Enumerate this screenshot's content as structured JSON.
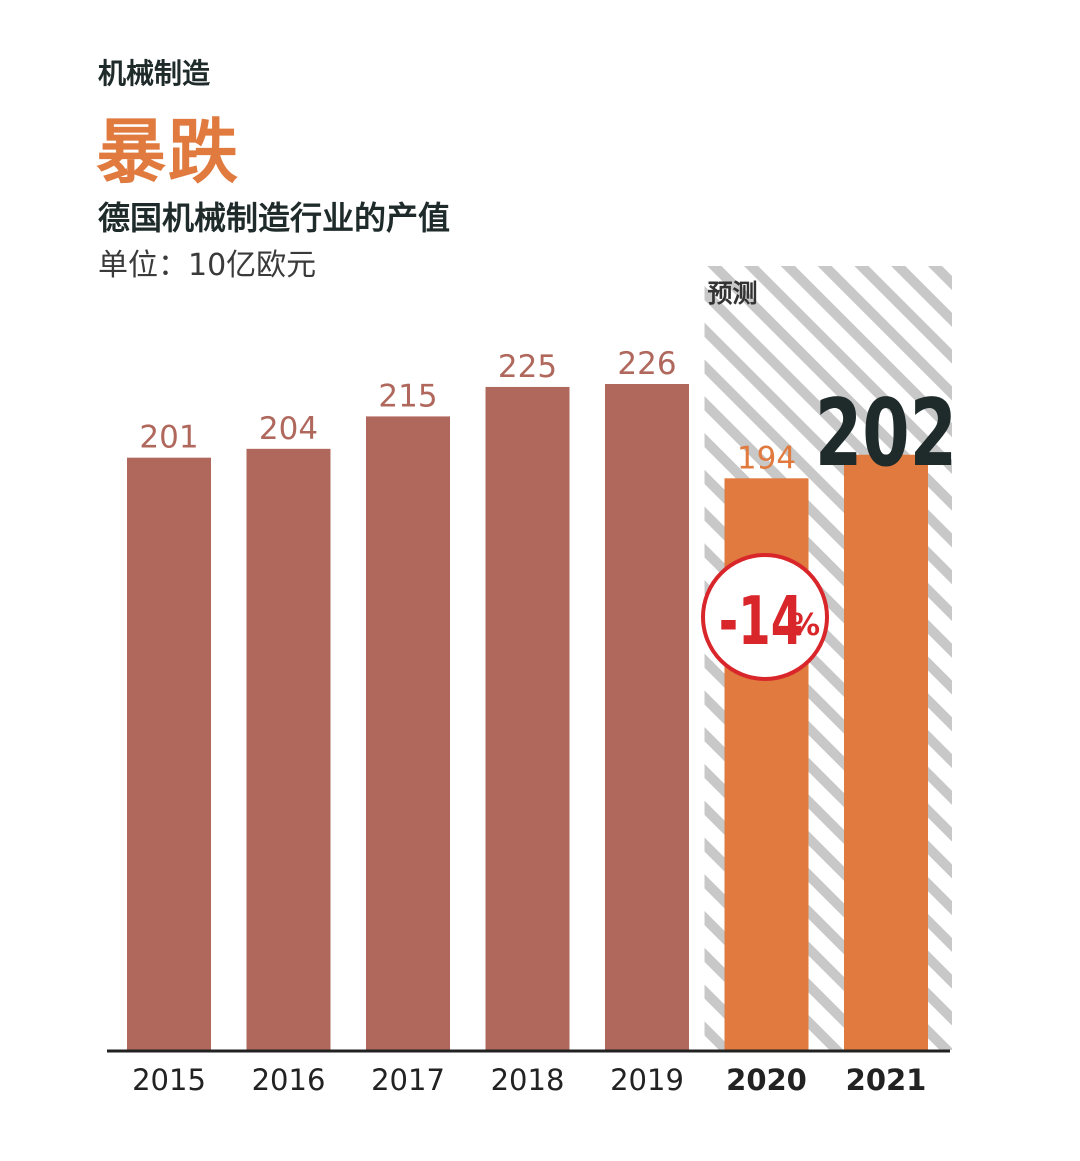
{
  "header": {
    "kicker": "机械制造",
    "headline": "暴跌",
    "title": "德国机械制造行业的产值",
    "unit": "单位：10亿欧元"
  },
  "forecast_label": "预测",
  "change_badge": {
    "value": "-14",
    "suffix": "%"
  },
  "colors": {
    "historical_bar": "#b0685d",
    "forecast_bar": "#e07a3e",
    "historical_label": "#b0685d",
    "forecast_label": "#e07a3e",
    "highlight_label": "#1f2a2a",
    "badge_red": "#d8262a",
    "hatch": "#c8c8c8"
  },
  "chart_data": {
    "type": "bar",
    "categories": [
      "2015",
      "2016",
      "2017",
      "2018",
      "2019",
      "2020",
      "2021"
    ],
    "values": [
      201,
      204,
      215,
      225,
      226,
      194,
      202
    ],
    "forecast_categories": [
      "2020",
      "2021"
    ],
    "ylim": [
      0,
      230
    ],
    "title": "德国机械制造行业的产值",
    "ylabel": "单位：10亿欧元",
    "xlabel": ""
  }
}
